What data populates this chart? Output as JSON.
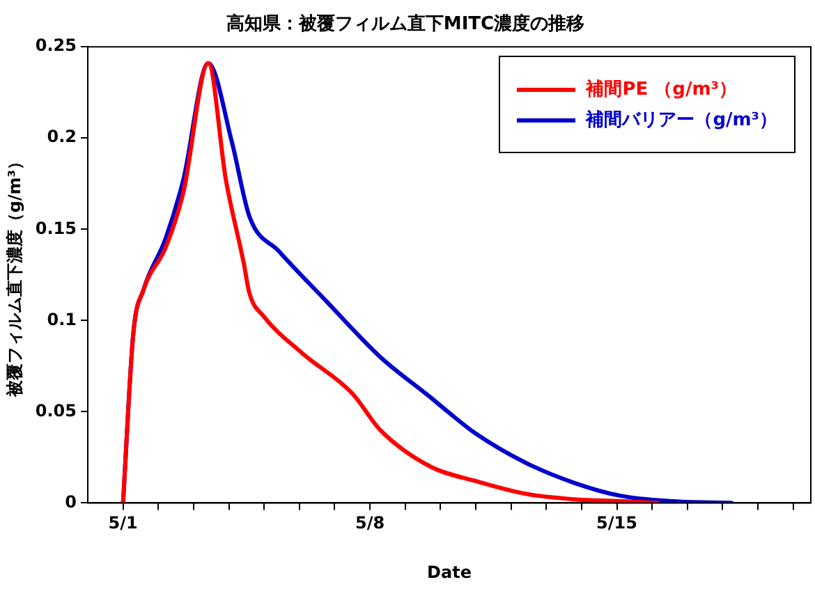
{
  "chart_data": {
    "type": "line",
    "title": "高知県：被覆フィルム直下MITC濃度の推移",
    "xlabel": "Date",
    "ylabel": "被覆フィルム直下濃度（g/m³）",
    "xlim": [
      "--04-30",
      "--05-20T12:00"
    ],
    "xticks": [
      {
        "value": "--05-01",
        "label": "5/1"
      },
      {
        "value": "--05-02",
        "label": null
      },
      {
        "value": "--05-03",
        "label": null
      },
      {
        "value": "--05-04",
        "label": null
      },
      {
        "value": "--05-05",
        "label": null
      },
      {
        "value": "--05-06",
        "label": null
      },
      {
        "value": "--05-07",
        "label": null
      },
      {
        "value": "--05-08",
        "label": "5/8"
      },
      {
        "value": "--05-09",
        "label": null
      },
      {
        "value": "--05-10",
        "label": null
      },
      {
        "value": "--05-11",
        "label": null
      },
      {
        "value": "--05-12",
        "label": null
      },
      {
        "value": "--05-13",
        "label": null
      },
      {
        "value": "--05-14",
        "label": null
      },
      {
        "value": "--05-15",
        "label": "5/15"
      },
      {
        "value": "--05-16",
        "label": null
      },
      {
        "value": "--05-17",
        "label": null
      },
      {
        "value": "--05-18",
        "label": null
      },
      {
        "value": "--05-19",
        "label": null
      },
      {
        "value": "--05-20",
        "label": null
      }
    ],
    "ylim": [
      0,
      0.25
    ],
    "yticks": [
      0,
      0.05,
      0.1,
      0.15,
      0.2,
      0.25
    ],
    "grid": false,
    "legend": "top right",
    "marker": "none",
    "line_style": "solid",
    "series": [
      {
        "name": "補間PE （g/m³）",
        "color": "#ff0000",
        "x": [
          "--05-01",
          "--05-01T07:00",
          "--05-01T14:00",
          "--05-02T05:00",
          "--05-02T17:00",
          "--05-03T10:00",
          "--05-03T22:00",
          "--05-04T10:00",
          "--05-04T14:00",
          "--05-05",
          "--05-06T02:00",
          "--05-07T12:00",
          "--05-08T07:00",
          "--05-09T17:00",
          "--05-11",
          "--05-12T10:00",
          "--05-13T19:00",
          "--05-15T02:00",
          "--05-16T05:00"
        ],
        "values": [
          0,
          0.093,
          0.117,
          0.14,
          0.17,
          0.241,
          0.177,
          0.132,
          0.115,
          0.102,
          0.082,
          0.06,
          0.04,
          0.02,
          0.012,
          0.005,
          0.002,
          0.001,
          0
        ]
      },
      {
        "name": "補間バリアー（g/m³）",
        "color": "#0000cc",
        "x": [
          "--05-01",
          "--05-01T07:00",
          "--05-01T14:00",
          "--05-02T05:00",
          "--05-02T17:00",
          "--05-03T10:00",
          "--05-04T02:00",
          "--05-04T14:00",
          "--05-05T10:00",
          "--05-06T19:00",
          "--05-08T07:00",
          "--05-09T17:00",
          "--05-10T05:00",
          "--05-11",
          "--05-12T10:00",
          "--05-13T19:00",
          "--05-15T02:00",
          "--05-16T12:00",
          "--05-18T07:00"
        ],
        "values": [
          0,
          0.093,
          0.117,
          0.145,
          0.177,
          0.241,
          0.198,
          0.157,
          0.138,
          0.11,
          0.08,
          0.058,
          0.05,
          0.038,
          0.022,
          0.011,
          0.004,
          0.001,
          0
        ]
      }
    ]
  }
}
